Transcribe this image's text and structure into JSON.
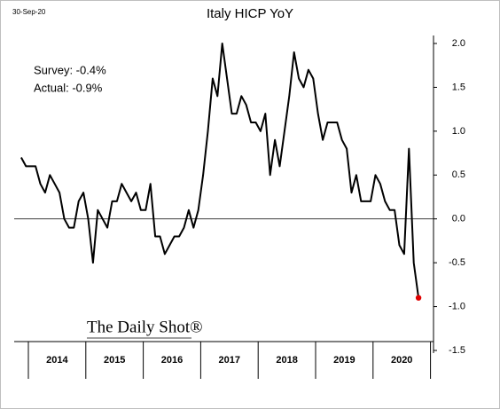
{
  "chart_data": {
    "type": "line",
    "title": "Italy HICP YoY",
    "date_stamp": "30-Sep-20",
    "annotations": [
      "Survey: -0.4%",
      "Actual:  -0.9%"
    ],
    "logo": "The Daily Shot®",
    "year_labels": [
      "2014",
      "2015",
      "2016",
      "2017",
      "2018",
      "2019",
      "2020"
    ],
    "color": "#000000",
    "last_point_color": "#e00000",
    "values": [
      0.7,
      0.6,
      0.6,
      0.6,
      0.4,
      0.3,
      0.5,
      0.4,
      0.3,
      0.0,
      -0.1,
      -0.1,
      0.2,
      0.3,
      0.0,
      -0.5,
      0.1,
      0.0,
      -0.1,
      0.2,
      0.2,
      0.4,
      0.3,
      0.2,
      0.3,
      0.1,
      0.1,
      0.4,
      -0.2,
      -0.2,
      -0.4,
      -0.3,
      -0.2,
      -0.2,
      -0.1,
      0.1,
      -0.1,
      0.1,
      0.5,
      1.0,
      1.6,
      1.4,
      2.0,
      1.6,
      1.2,
      1.2,
      1.4,
      1.3,
      1.1,
      1.1,
      1.0,
      1.2,
      0.5,
      0.9,
      0.6,
      1.0,
      1.4,
      1.9,
      1.6,
      1.5,
      1.7,
      1.6,
      1.2,
      0.9,
      1.1,
      1.1,
      1.1,
      0.9,
      0.8,
      0.3,
      0.5,
      0.2,
      0.2,
      0.2,
      0.5,
      0.4,
      0.2,
      0.1,
      0.1,
      -0.3,
      -0.4,
      0.8,
      -0.5,
      -0.9
    ],
    "ylim": [
      -1.5,
      2.0
    ],
    "yticks": [
      {
        "value": 2,
        "label": "2.0"
      },
      1.5,
      {
        "value": 1,
        "label": "1.0"
      },
      0.5,
      {
        "value": 0,
        "label": "0.0"
      },
      -0.5,
      {
        "value": -1,
        "label": "-1.0"
      },
      -1.5
    ]
  }
}
